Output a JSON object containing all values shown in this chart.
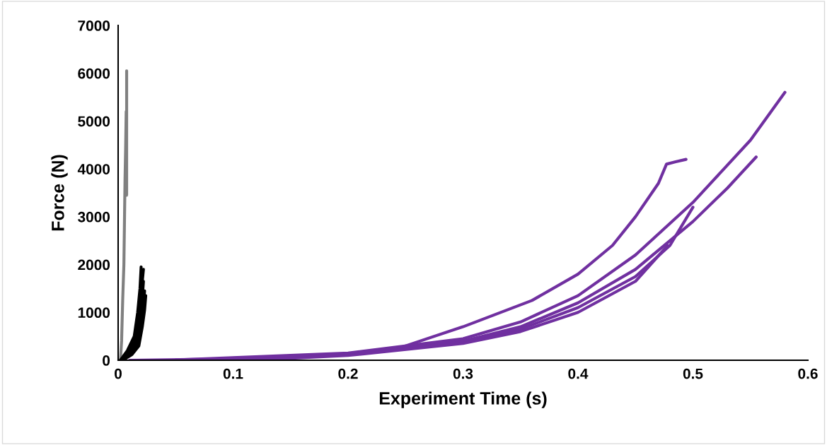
{
  "chart_data": {
    "type": "line",
    "xlabel": "Experiment Time (s)",
    "ylabel": "Force (N)",
    "xlim": [
      0,
      0.6
    ],
    "xticks": [
      0,
      0.1,
      0.2,
      0.3,
      0.4,
      0.5,
      0.6
    ],
    "ylim": [
      0,
      7000
    ],
    "yticks": [
      0,
      1000,
      2000,
      3000,
      4000,
      5000,
      6000,
      7000
    ],
    "grid": false,
    "marker": "none",
    "line_style": "solid",
    "series": [
      {
        "color": "#808080",
        "x": [
          0.002,
          0.003,
          0.004,
          0.005,
          0.006,
          0.0065,
          0.007,
          0.0074,
          0.0074
        ],
        "values": [
          0,
          400,
          1300,
          2000,
          3800,
          4400,
          5200,
          3450,
          6050
        ]
      },
      {
        "color": "#000000",
        "x": [
          0.002,
          0.008,
          0.014,
          0.017,
          0.019,
          0.02
        ],
        "values": [
          0,
          200,
          500,
          1000,
          1500,
          1950
        ]
      },
      {
        "color": "#000000",
        "x": [
          0.002,
          0.009,
          0.015,
          0.018,
          0.02,
          0.022
        ],
        "values": [
          0,
          180,
          450,
          900,
          1400,
          1900
        ]
      },
      {
        "color": "#000000",
        "x": [
          0.003,
          0.01,
          0.016,
          0.019,
          0.021,
          0.022
        ],
        "values": [
          0,
          150,
          400,
          850,
          1300,
          1650
        ]
      },
      {
        "color": "#000000",
        "x": [
          0.003,
          0.011,
          0.017,
          0.02,
          0.022,
          0.023
        ],
        "values": [
          0,
          130,
          350,
          750,
          1150,
          1450
        ]
      },
      {
        "color": "#000000",
        "x": [
          0.004,
          0.012,
          0.018,
          0.021,
          0.023,
          0.024
        ],
        "values": [
          0,
          120,
          300,
          700,
          1050,
          1350
        ]
      },
      {
        "color": "#7030a0",
        "x": [
          0.01,
          0.1,
          0.2,
          0.24,
          0.3,
          0.36,
          0.4,
          0.43,
          0.45,
          0.47,
          0.477,
          0.485,
          0.494
        ],
        "values": [
          0,
          30,
          120,
          220,
          700,
          1250,
          1800,
          2400,
          3000,
          3700,
          4100,
          4150,
          4200
        ]
      },
      {
        "color": "#7030a0",
        "x": [
          0.05,
          0.2,
          0.3,
          0.35,
          0.4,
          0.45,
          0.5,
          0.55,
          0.58
        ],
        "values": [
          5,
          150,
          450,
          800,
          1350,
          2200,
          3300,
          4600,
          5600
        ]
      },
      {
        "color": "#7030a0",
        "x": [
          0.08,
          0.2,
          0.3,
          0.35,
          0.4,
          0.45,
          0.5,
          0.53,
          0.555
        ],
        "values": [
          5,
          130,
          400,
          700,
          1200,
          1900,
          2900,
          3600,
          4250
        ]
      },
      {
        "color": "#7030a0",
        "x": [
          0.1,
          0.2,
          0.3,
          0.35,
          0.4,
          0.45,
          0.48,
          0.5
        ],
        "values": [
          5,
          120,
          380,
          650,
          1100,
          1750,
          2400,
          3200
        ]
      },
      {
        "color": "#7030a0",
        "x": [
          0.12,
          0.2,
          0.3,
          0.35,
          0.4,
          0.45,
          0.478
        ],
        "values": [
          5,
          100,
          350,
          600,
          1000,
          1650,
          2400
        ]
      }
    ]
  }
}
